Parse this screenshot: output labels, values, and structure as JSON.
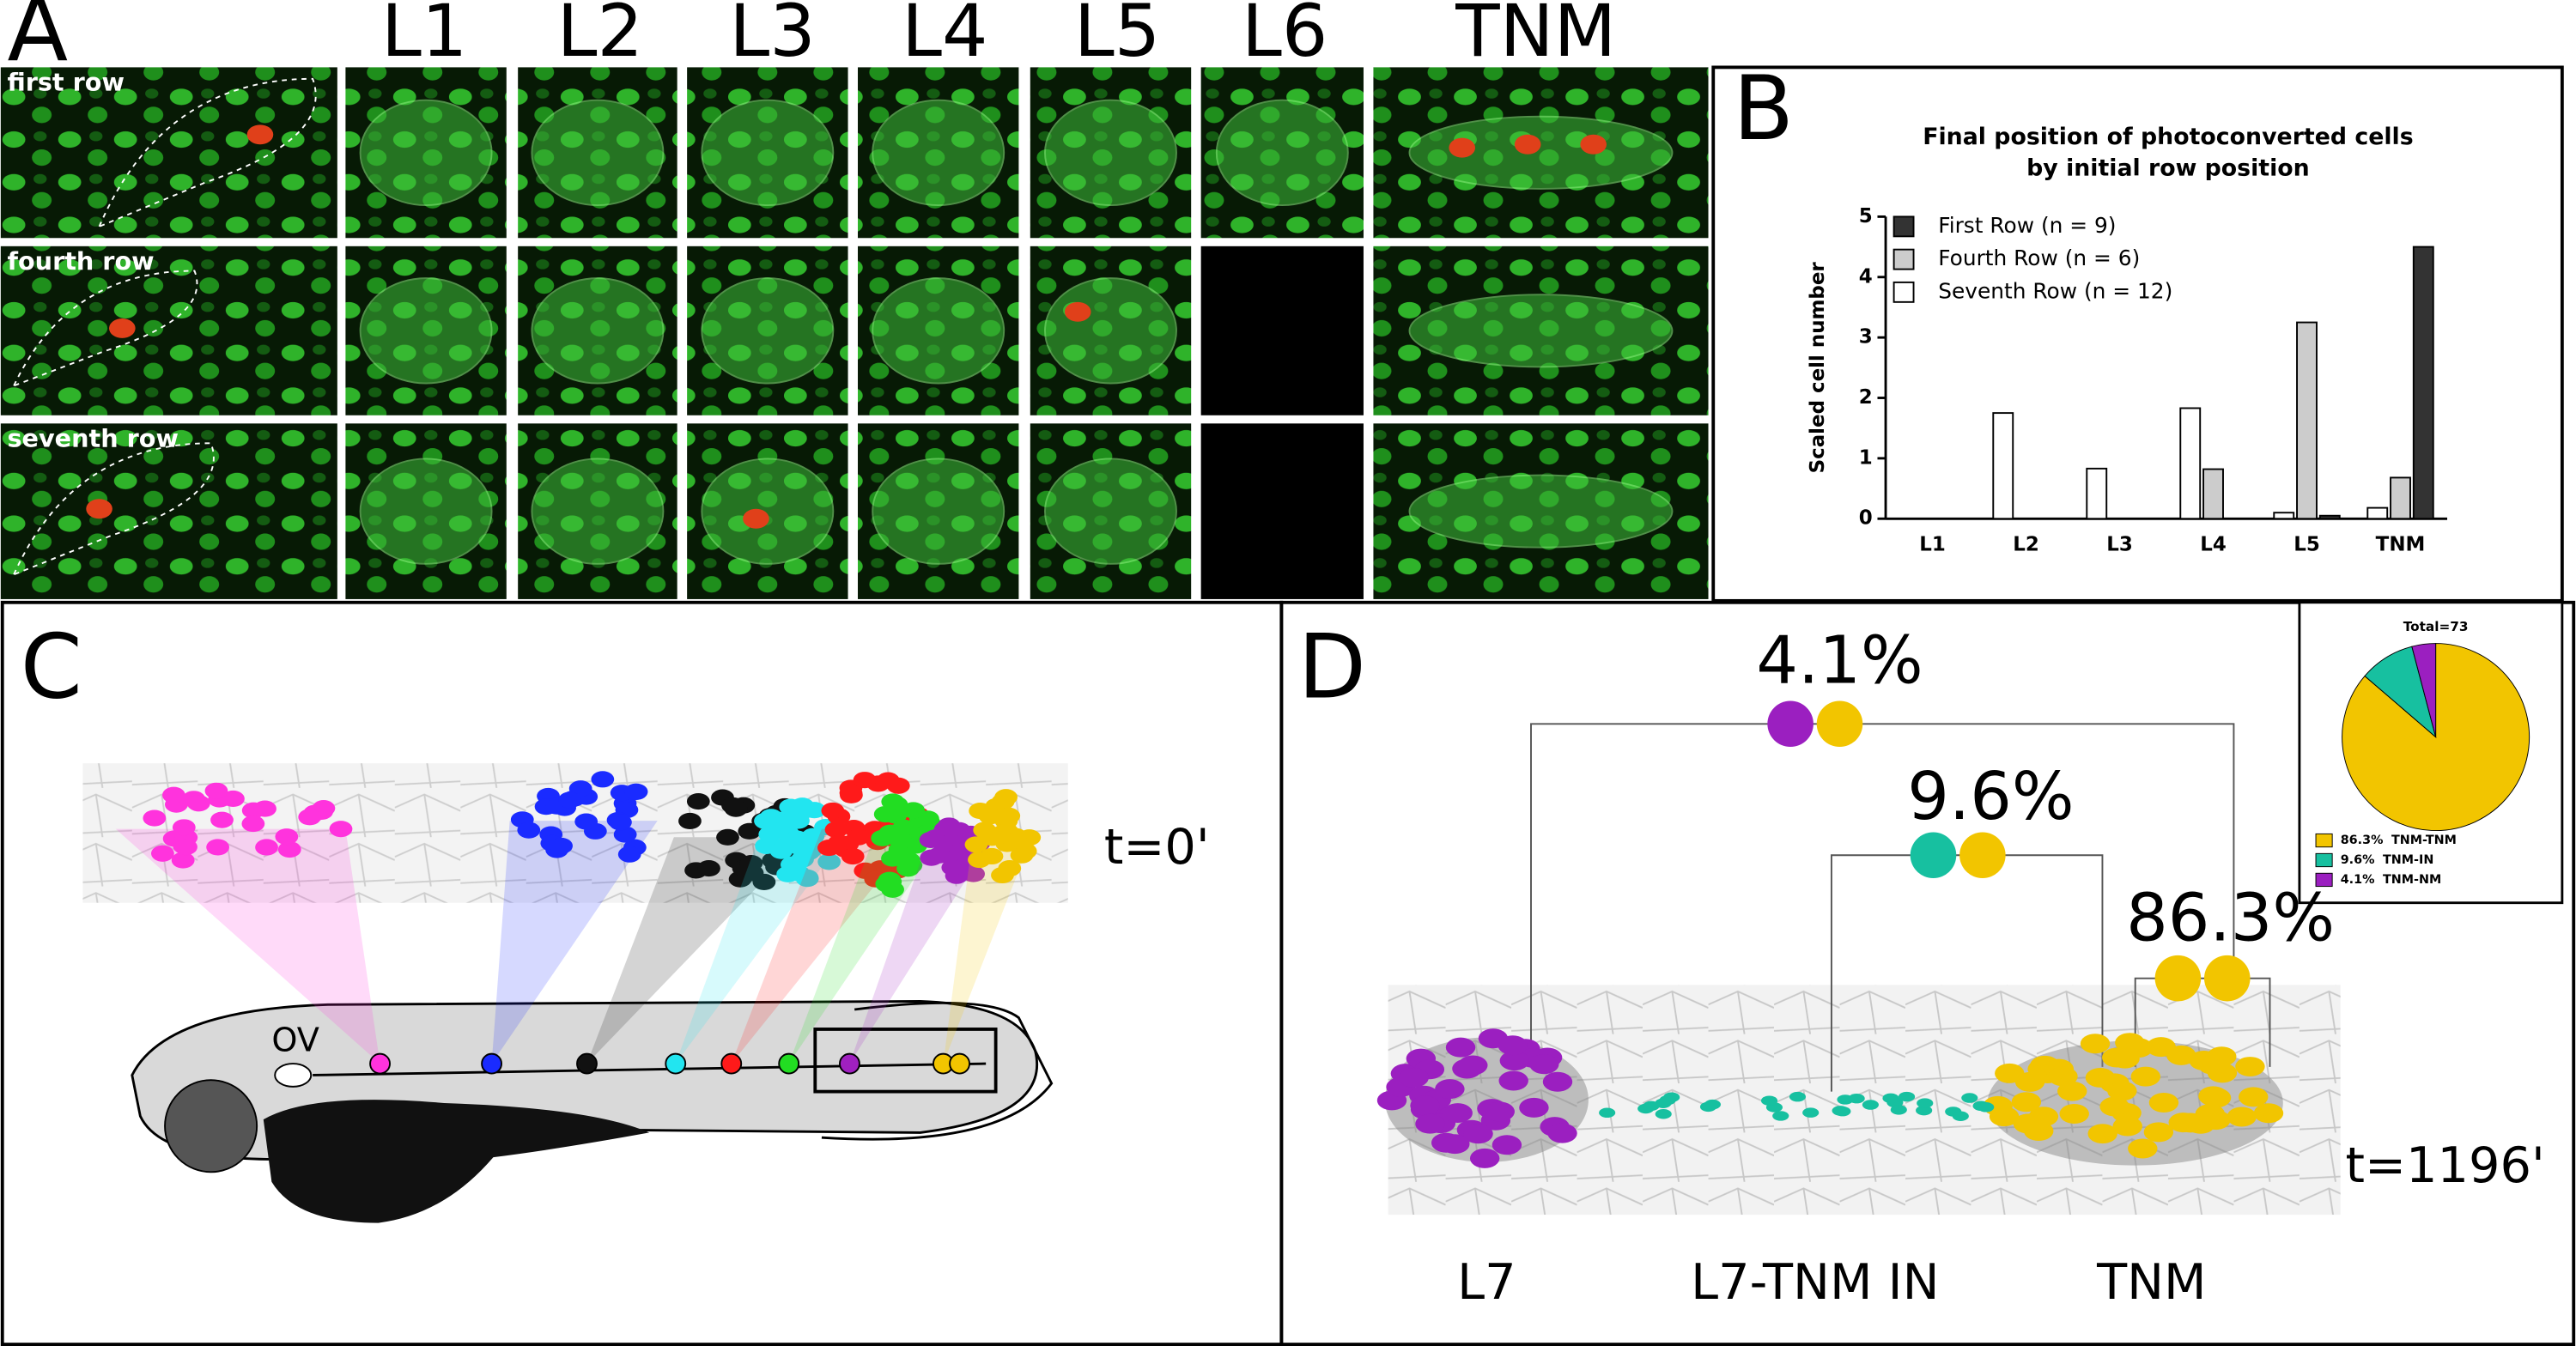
{
  "panels": {
    "a": "A",
    "b": "B",
    "c": "C",
    "d": "D"
  },
  "columns": [
    "L1",
    "L2",
    "L3",
    "L4",
    "L5",
    "L6",
    "TNM"
  ],
  "rows": [
    "first row",
    "fourth row",
    "seventh row"
  ],
  "panel_c": {
    "time": "t=0'",
    "ov": "OV"
  },
  "panel_d": {
    "time": "t=1196'",
    "labels": [
      "L7",
      "L7-TNM IN",
      "TNM"
    ]
  },
  "chart_data": [
    {
      "type": "bar",
      "title": "Final position of photoconverted cells",
      "subtitle": "by initial row position",
      "y_label": "Scaled cell number",
      "categories": [
        "L1",
        "L2",
        "L3",
        "L4",
        "L5",
        "TNM"
      ],
      "series": [
        {
          "name": "First Row (n = 9)",
          "color": "#333333",
          "values": [
            0,
            0,
            0,
            0,
            0.05,
            4.5
          ]
        },
        {
          "name": "Fourth Row (n = 6)",
          "color": "#cccccc",
          "values": [
            0,
            0,
            0,
            0.82,
            3.25,
            0.68
          ]
        },
        {
          "name": "Seventh Row (n = 12)",
          "color": "#ffffff",
          "values": [
            0,
            1.75,
            0.83,
            1.83,
            0.1,
            0.18
          ]
        }
      ],
      "ylim": [
        0,
        5
      ],
      "yticks": [
        0,
        1,
        2,
        3,
        4,
        5
      ],
      "legend": "top-left"
    },
    {
      "type": "pie",
      "title": "Total=73",
      "categories": [
        "TNM-TNM",
        "TNM-IN",
        "TNM-NM"
      ],
      "values": [
        86.3,
        9.6,
        4.1
      ],
      "value_labels": [
        "86.3%",
        "9.6%",
        "4.1%"
      ],
      "colors": [
        "#f2c500",
        "#17c0a0",
        "#9b1fc0"
      ]
    }
  ]
}
